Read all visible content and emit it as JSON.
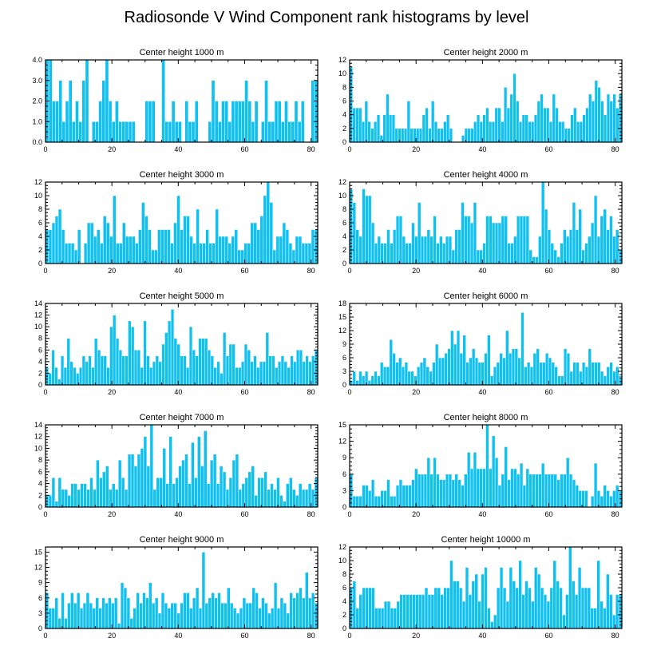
{
  "title": "Radiosonde V Wind Component rank histograms by level",
  "colors": {
    "bar": "#10c0f0",
    "frame": "#000000"
  },
  "chart_data": [
    {
      "type": "bar",
      "title": "Center height 1000 m",
      "xlim": [
        0,
        82
      ],
      "ylim": [
        0,
        4
      ],
      "yticks": [
        "0.0",
        "1.0",
        "2.0",
        "3.0",
        "4.0"
      ],
      "ytick_values": [
        0,
        1,
        2,
        3,
        4
      ],
      "xticks": [
        0,
        20,
        40,
        60,
        80
      ],
      "values": [
        4,
        4,
        2,
        2,
        3,
        1,
        2,
        3,
        1,
        2,
        1,
        3,
        4,
        0,
        1,
        1,
        2,
        3,
        4,
        2,
        1,
        2,
        1,
        1,
        1,
        1,
        1,
        0,
        0,
        0,
        2,
        2,
        2,
        0,
        0,
        4,
        1,
        1,
        2,
        1,
        1,
        0,
        2,
        1,
        1,
        2,
        0,
        0,
        0,
        1,
        3,
        2,
        1,
        2,
        2,
        1,
        2,
        2,
        2,
        2,
        3,
        2,
        1,
        2,
        0,
        1,
        3,
        1,
        1,
        2,
        2,
        1,
        2,
        1,
        1,
        2,
        1,
        2,
        0,
        0,
        3,
        3
      ]
    },
    {
      "type": "bar",
      "title": "Center height 2000 m",
      "xlim": [
        0,
        82
      ],
      "ylim": [
        0,
        12
      ],
      "yticks": [
        "0",
        "2",
        "4",
        "6",
        "8",
        "10",
        "12"
      ],
      "ytick_values": [
        0,
        2,
        4,
        6,
        8,
        10,
        12
      ],
      "xticks": [
        0,
        20,
        40,
        60,
        80
      ],
      "values": [
        11,
        5,
        5,
        5,
        3,
        6,
        3,
        2,
        3,
        4,
        1,
        4,
        7,
        4,
        4,
        2,
        2,
        2,
        2,
        6,
        2,
        2,
        2,
        2,
        4,
        5,
        2,
        6,
        3,
        2,
        2,
        3,
        4,
        2,
        0,
        0,
        0,
        1,
        2,
        2,
        2,
        3,
        4,
        3,
        4,
        5,
        3,
        3,
        5,
        5,
        3,
        8,
        5,
        7,
        10,
        6,
        3,
        4,
        4,
        3,
        3,
        4,
        6,
        7,
        5,
        5,
        3,
        7,
        5,
        3,
        3,
        2,
        2,
        4,
        5,
        3,
        3,
        4,
        5,
        7,
        6,
        9,
        8,
        6,
        4,
        7,
        6,
        7,
        5,
        7
      ]
    },
    {
      "type": "bar",
      "title": "Center height 3000 m",
      "xlim": [
        0,
        82
      ],
      "ylim": [
        0,
        12
      ],
      "yticks": [
        "0",
        "2",
        "4",
        "6",
        "8",
        "10",
        "12"
      ],
      "ytick_values": [
        0,
        2,
        4,
        6,
        8,
        10,
        12
      ],
      "xticks": [
        0,
        20,
        40,
        60,
        80
      ],
      "values": [
        5,
        5,
        6,
        7,
        8,
        5,
        3,
        3,
        3,
        2,
        5,
        0,
        3,
        6,
        6,
        4,
        5,
        3,
        7,
        6,
        4,
        10,
        3,
        3,
        6,
        4,
        4,
        4,
        3,
        5,
        9,
        7,
        5,
        2,
        2,
        5,
        5,
        5,
        5,
        3,
        6,
        10,
        5,
        7,
        7,
        4,
        3,
        8,
        3,
        3,
        5,
        3,
        3,
        8,
        4,
        4,
        4,
        3,
        4,
        5,
        2,
        2,
        3,
        3,
        6,
        6,
        5,
        7,
        10,
        12,
        9,
        2,
        4,
        4,
        6,
        5,
        3,
        2,
        4,
        4,
        3,
        3,
        3,
        5,
        5
      ]
    },
    {
      "type": "bar",
      "title": "Center height 4000 m",
      "xlim": [
        0,
        82
      ],
      "ylim": [
        0,
        12
      ],
      "yticks": [
        "0",
        "2",
        "4",
        "6",
        "8",
        "10",
        "12"
      ],
      "ytick_values": [
        0,
        2,
        4,
        6,
        8,
        10,
        12
      ],
      "xticks": [
        0,
        20,
        40,
        60,
        80
      ],
      "values": [
        11,
        9,
        5,
        4,
        11,
        10,
        10,
        6,
        3,
        4,
        3,
        3,
        5,
        3,
        5,
        7,
        7,
        4,
        3,
        3,
        6,
        4,
        9,
        4,
        4,
        5,
        4,
        7,
        3,
        4,
        3,
        4,
        4,
        2,
        5,
        5,
        9,
        7,
        7,
        6,
        9,
        2,
        2,
        3,
        7,
        7,
        6,
        6,
        6,
        7,
        7,
        3,
        3,
        4,
        7,
        7,
        7,
        7,
        2,
        1,
        1,
        4,
        12,
        8,
        5,
        3,
        2,
        1,
        3,
        5,
        4,
        5,
        9,
        5,
        8,
        2,
        3,
        4,
        6,
        10,
        4,
        7,
        8,
        5,
        7,
        4,
        5,
        2
      ]
    },
    {
      "type": "bar",
      "title": "Center height 5000 m",
      "xlim": [
        0,
        82
      ],
      "ylim": [
        0,
        14
      ],
      "yticks": [
        "0",
        "2",
        "4",
        "6",
        "8",
        "10",
        "12",
        "14"
      ],
      "ytick_values": [
        0,
        2,
        4,
        6,
        8,
        10,
        12,
        14
      ],
      "xticks": [
        0,
        20,
        40,
        60,
        80
      ],
      "values": [
        3,
        2,
        6,
        3,
        1,
        5,
        3,
        8,
        4,
        3,
        2,
        3,
        5,
        4,
        5,
        3,
        8,
        6,
        5,
        5,
        3,
        10,
        12,
        8,
        6,
        5,
        5,
        11,
        10,
        6,
        6,
        3,
        11,
        5,
        3,
        4,
        5,
        4,
        7,
        9,
        11,
        13,
        8,
        7,
        5,
        5,
        3,
        10,
        6,
        5,
        8,
        8,
        8,
        6,
        5,
        3,
        4,
        2,
        9,
        5,
        7,
        7,
        3,
        3,
        4,
        7,
        6,
        4,
        5,
        3,
        4,
        4,
        9,
        5,
        5,
        3,
        4,
        5,
        4,
        3,
        5,
        4,
        6,
        6,
        4,
        5,
        4,
        5,
        6
      ]
    },
    {
      "type": "bar",
      "title": "Center height 6000 m",
      "xlim": [
        0,
        82
      ],
      "ylim": [
        0,
        18
      ],
      "yticks": [
        "0",
        "3",
        "6",
        "9",
        "12",
        "15",
        "18"
      ],
      "ytick_values": [
        0,
        3,
        6,
        9,
        12,
        15,
        18
      ],
      "xticks": [
        0,
        20,
        40,
        60,
        80
      ],
      "values": [
        1,
        3,
        1,
        3,
        2,
        3,
        1,
        2,
        3,
        2,
        5,
        4,
        4,
        10,
        7,
        5,
        6,
        4,
        5,
        3,
        3,
        2,
        4,
        5,
        6,
        4,
        3,
        5,
        9,
        6,
        6,
        7,
        8,
        12,
        9,
        12,
        7,
        11,
        5,
        6,
        8,
        6,
        5,
        5,
        7,
        11,
        2,
        4,
        5,
        7,
        6,
        12,
        7,
        8,
        8,
        6,
        16,
        4,
        5,
        4,
        7,
        8,
        5,
        5,
        7,
        6,
        5,
        4,
        2,
        2,
        8,
        7,
        3,
        5,
        5,
        3,
        5,
        4,
        8,
        5,
        5,
        5,
        3,
        2,
        4,
        5,
        3,
        4,
        2
      ]
    },
    {
      "type": "bar",
      "title": "Center height 7000 m",
      "xlim": [
        0,
        82
      ],
      "ylim": [
        0,
        14
      ],
      "yticks": [
        "0",
        "2",
        "4",
        "6",
        "8",
        "10",
        "12",
        "14"
      ],
      "ytick_values": [
        0,
        2,
        4,
        6,
        8,
        10,
        12,
        14
      ],
      "xticks": [
        0,
        20,
        40,
        60,
        80
      ],
      "values": [
        2,
        2,
        5,
        1,
        5,
        3,
        3,
        2,
        4,
        4,
        3,
        4,
        4,
        3,
        5,
        3,
        8,
        5,
        6,
        7,
        3,
        4,
        3,
        8,
        5,
        3,
        9,
        9,
        7,
        9,
        10,
        12,
        7,
        14,
        3,
        5,
        5,
        10,
        4,
        12,
        4,
        5,
        7,
        8,
        9,
        4,
        11,
        5,
        12,
        7,
        13,
        4,
        8,
        9,
        4,
        7,
        6,
        3,
        5,
        8,
        9,
        3,
        4,
        5,
        6,
        7,
        2,
        5,
        5,
        6,
        3,
        4,
        3,
        5,
        2,
        1,
        4,
        5,
        3,
        2,
        4,
        3,
        3,
        4,
        3,
        5
      ]
    },
    {
      "type": "bar",
      "title": "Center height 8000 m",
      "xlim": [
        0,
        82
      ],
      "ylim": [
        0,
        15
      ],
      "yticks": [
        "0",
        "3",
        "6",
        "9",
        "12",
        "15"
      ],
      "ytick_values": [
        0,
        3,
        6,
        9,
        12,
        15
      ],
      "xticks": [
        0,
        20,
        40,
        60,
        80
      ],
      "values": [
        6,
        2,
        2,
        2,
        4,
        4,
        3,
        5,
        2,
        2,
        3,
        3,
        5,
        2,
        2,
        4,
        5,
        4,
        4,
        4,
        5,
        7,
        6,
        6,
        6,
        9,
        6,
        9,
        6,
        5,
        5,
        6,
        6,
        5,
        6,
        5,
        4,
        6,
        10,
        7,
        10,
        7,
        7,
        7,
        15,
        7,
        13,
        9,
        4,
        6,
        11,
        5,
        7,
        7,
        6,
        8,
        4,
        7,
        6,
        6,
        6,
        6,
        8,
        6,
        6,
        6,
        6,
        5,
        6,
        6,
        9,
        6,
        5,
        4,
        3,
        3,
        3,
        0,
        2,
        8,
        3,
        2,
        4,
        3,
        2,
        3,
        4,
        3
      ]
    },
    {
      "type": "bar",
      "title": "Center height 9000 m",
      "xlim": [
        0,
        82
      ],
      "ylim": [
        0,
        16
      ],
      "yticks": [
        "0",
        "3",
        "6",
        "9",
        "12",
        "15"
      ],
      "ytick_values": [
        0,
        3,
        6,
        9,
        12,
        15
      ],
      "xticks": [
        0,
        20,
        40,
        60,
        80
      ],
      "values": [
        7,
        4,
        4,
        6,
        2,
        7,
        2,
        5,
        7,
        5,
        7,
        4,
        5,
        7,
        5,
        4,
        6,
        4,
        6,
        5,
        6,
        5,
        6,
        1,
        9,
        8,
        6,
        2,
        4,
        7,
        5,
        7,
        6,
        9,
        5,
        6,
        3,
        7,
        5,
        4,
        5,
        5,
        3,
        5,
        7,
        7,
        4,
        6,
        8,
        4,
        15,
        5,
        6,
        7,
        6,
        7,
        5,
        5,
        8,
        5,
        4,
        3,
        4,
        6,
        5,
        5,
        8,
        7,
        4,
        6,
        5,
        3,
        4,
        9,
        4,
        6,
        5,
        3,
        7,
        6,
        7,
        8,
        6,
        11,
        6,
        7,
        5
      ]
    },
    {
      "type": "bar",
      "title": "Center height 10000 m",
      "xlim": [
        0,
        82
      ],
      "ylim": [
        0,
        12
      ],
      "yticks": [
        "0",
        "2",
        "4",
        "6",
        "8",
        "10",
        "12"
      ],
      "ytick_values": [
        0,
        2,
        4,
        6,
        8,
        10,
        12
      ],
      "xticks": [
        0,
        20,
        40,
        60,
        80
      ],
      "values": [
        6,
        7,
        3,
        5,
        6,
        6,
        6,
        6,
        3,
        3,
        3,
        4,
        4,
        3,
        3,
        4,
        5,
        5,
        5,
        5,
        5,
        5,
        5,
        5,
        6,
        5,
        5,
        6,
        6,
        5,
        6,
        6,
        10,
        7,
        7,
        6,
        4,
        9,
        5,
        7,
        8,
        4,
        8,
        9,
        3,
        1,
        2,
        6,
        9,
        6,
        4,
        9,
        7,
        6,
        10,
        5,
        7,
        6,
        4,
        9,
        8,
        6,
        5,
        4,
        6,
        10,
        7,
        6,
        2,
        5,
        12,
        7,
        5,
        9,
        6,
        6,
        6,
        3,
        3,
        10,
        4,
        3,
        8,
        5,
        2,
        5,
        5
      ]
    }
  ]
}
